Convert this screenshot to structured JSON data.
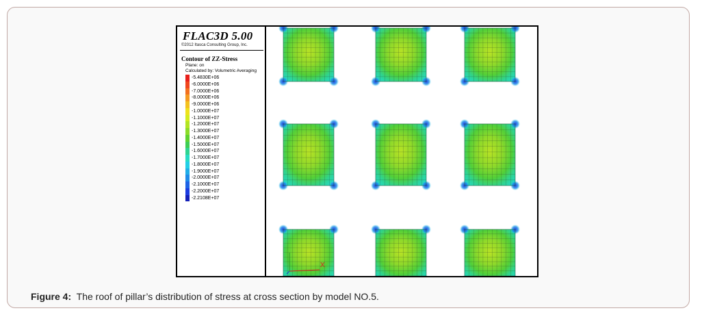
{
  "figure": {
    "software_title": "FLAC3D 5.00",
    "copyright": "©2012 Itasca Consulting Group, Inc.",
    "contour_title": "Contour of ZZ-Stress",
    "plane": "Plane: on",
    "calculated_by": "Calculated by: Volumetric Averaging",
    "legend": [
      {
        "value": "-5.4830E+06",
        "color": "#e8201b"
      },
      {
        "value": "-6.0000E+06",
        "color": "#f0461d"
      },
      {
        "value": "-7.0000E+06",
        "color": "#f3701f"
      },
      {
        "value": "-8.0000E+06",
        "color": "#f59a21"
      },
      {
        "value": "-9.0000E+06",
        "color": "#f4c21f"
      },
      {
        "value": "-1.0000E+07",
        "color": "#efe21c"
      },
      {
        "value": "-1.1000E+07",
        "color": "#d4ec1e"
      },
      {
        "value": "-1.2000E+07",
        "color": "#b2e423"
      },
      {
        "value": "-1.3000E+07",
        "color": "#8cdc29"
      },
      {
        "value": "-1.4000E+07",
        "color": "#5fd22f"
      },
      {
        "value": "-1.5000E+07",
        "color": "#3ecd55"
      },
      {
        "value": "-1.6000E+07",
        "color": "#2fd491"
      },
      {
        "value": "-1.7000E+07",
        "color": "#27dcc4"
      },
      {
        "value": "-1.8000E+07",
        "color": "#22cfe6"
      },
      {
        "value": "-1.9000E+07",
        "color": "#20aee8"
      },
      {
        "value": "-2.0000E+07",
        "color": "#1f8ce8"
      },
      {
        "value": "-2.1000E+07",
        "color": "#1e63e6"
      },
      {
        "value": "-2.2000E+07",
        "color": "#1b3ce0"
      },
      {
        "value": "-2.2108E+07",
        "color": "#1420b8"
      }
    ],
    "axis_label": "X"
  },
  "caption": {
    "label": "Figure 4:",
    "text": "The roof of pillar’s distribution of stress at cross section by model NO.5."
  }
}
